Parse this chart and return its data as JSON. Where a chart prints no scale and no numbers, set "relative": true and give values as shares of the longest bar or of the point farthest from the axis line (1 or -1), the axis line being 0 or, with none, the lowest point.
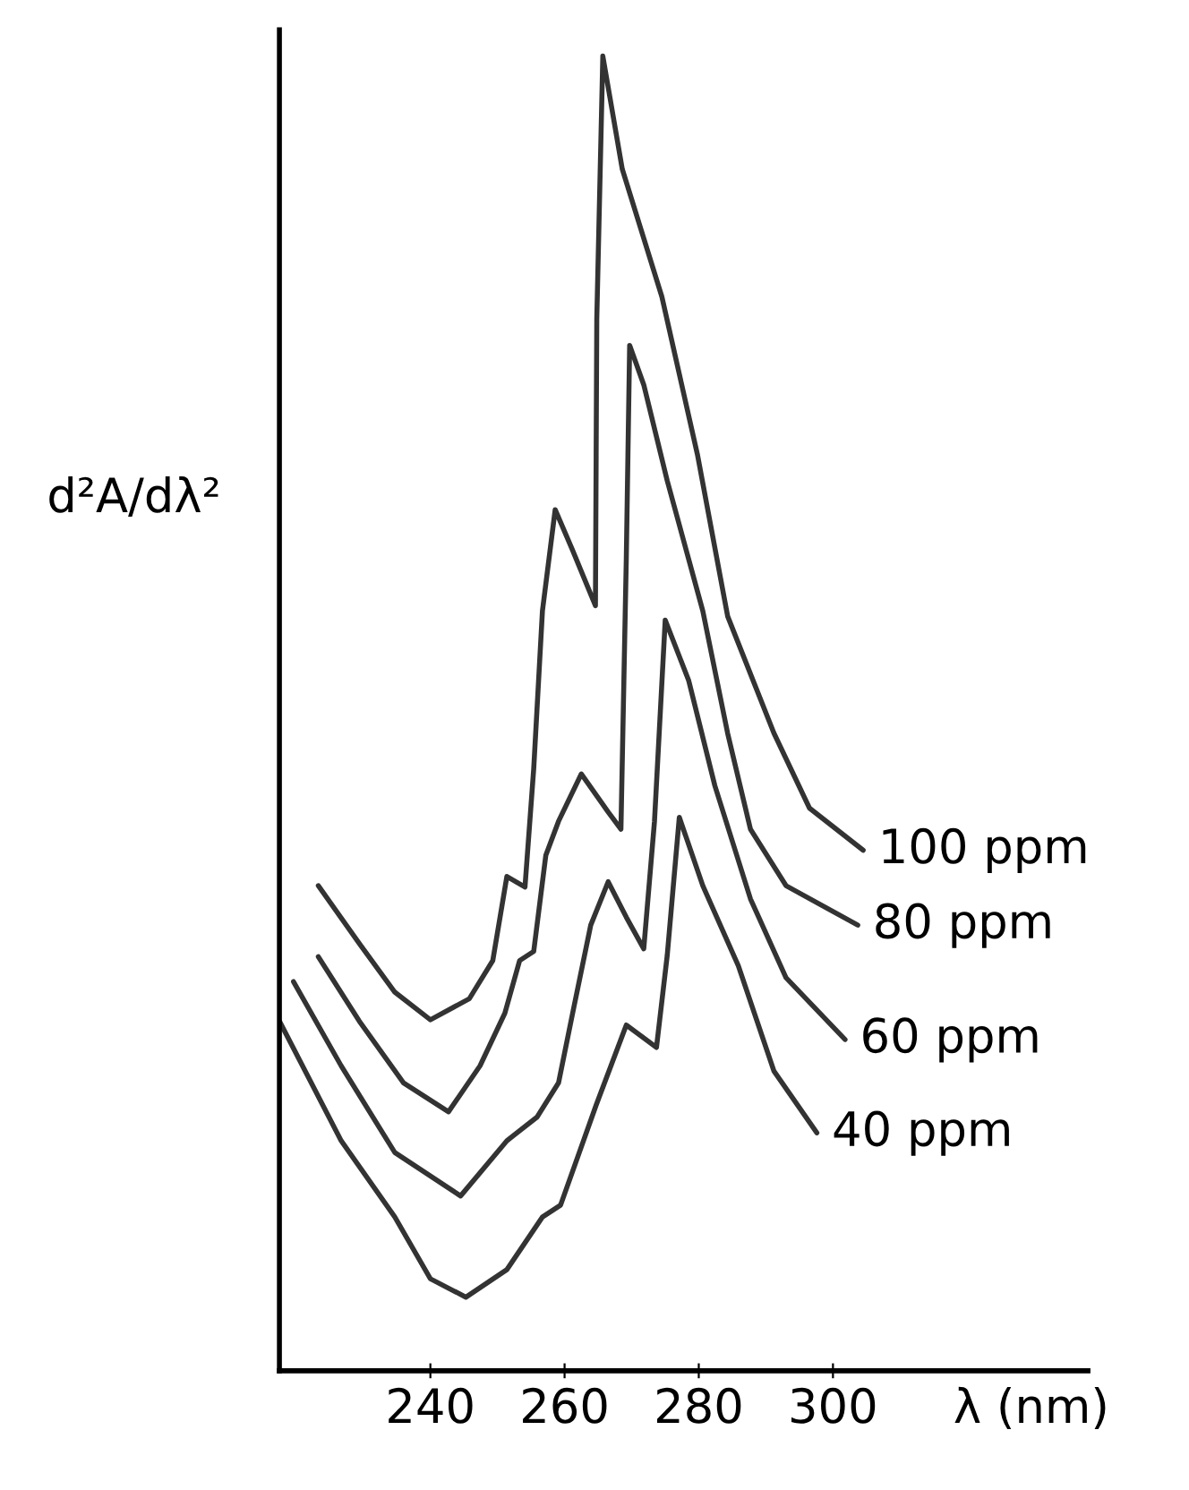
{
  "chart_data": {
    "type": "line",
    "relative": true,
    "xlabel": "λ (nm)",
    "ylabel": "d²A/dλ²",
    "xlim": [
      217.5,
      338
    ],
    "xticks": [
      240,
      260,
      280,
      300
    ],
    "tick_labels": "x",
    "grid": false,
    "legend": false,
    "marker": "none",
    "line_style": "solid",
    "series": [
      {
        "name": "100 ppm",
        "color": "#333333",
        "x": [
          223.3,
          229.4,
          234.7,
          240,
          245.8,
          249.3,
          251.4,
          254.1,
          255.4,
          256.7,
          258.6,
          261.2,
          264.6,
          264.8,
          265.7,
          268.6,
          274.5,
          279.8,
          284.3,
          291.2,
          296.5,
          304.5
        ],
        "values": [
          0.369,
          0.325,
          0.288,
          0.267,
          0.283,
          0.312,
          0.376,
          0.368,
          0.458,
          0.578,
          0.655,
          0.624,
          0.582,
          0.8,
          1,
          0.914,
          0.817,
          0.697,
          0.574,
          0.485,
          0.428,
          0.396
        ]
      },
      {
        "name": "80 ppm",
        "color": "#333333",
        "x": [
          223.3,
          229.4,
          236.0,
          242.7,
          247.4,
          251.1,
          253.3,
          255.4,
          257.2,
          259.1,
          262.5,
          266.5,
          268.4,
          269.2,
          269.7,
          271.8,
          275.3,
          280.6,
          284.3,
          287.7,
          293.0,
          303.7
        ],
        "values": [
          0.315,
          0.266,
          0.219,
          0.197,
          0.232,
          0.272,
          0.312,
          0.319,
          0.392,
          0.418,
          0.454,
          0.425,
          0.412,
          0.618,
          0.78,
          0.75,
          0.677,
          0.578,
          0.485,
          0.412,
          0.369,
          0.339
        ]
      },
      {
        "name": "60 ppm",
        "color": "#333333",
        "x": [
          219.6,
          226.7,
          234.7,
          244.5,
          251.4,
          255.9,
          259.1,
          261.2,
          263.9,
          266.5,
          269.2,
          271.8,
          273.4,
          275.0,
          278.5,
          282.4,
          287.7,
          293.0,
          301.8
        ],
        "values": [
          0.296,
          0.232,
          0.166,
          0.133,
          0.175,
          0.193,
          0.219,
          0.272,
          0.339,
          0.372,
          0.345,
          0.321,
          0.418,
          0.571,
          0.525,
          0.445,
          0.359,
          0.299,
          0.252
        ]
      },
      {
        "name": "40 ppm",
        "color": "#333333",
        "x": [
          217.5,
          226.7,
          234.7,
          240.0,
          245.3,
          251.4,
          256.7,
          259.4,
          264.7,
          269.2,
          273.7,
          275.3,
          277.1,
          280.6,
          285.9,
          291.2,
          297.6
        ],
        "values": [
          0.266,
          0.175,
          0.117,
          0.07,
          0.056,
          0.077,
          0.117,
          0.126,
          0.202,
          0.263,
          0.246,
          0.316,
          0.421,
          0.369,
          0.308,
          0.228,
          0.181
        ]
      }
    ]
  }
}
